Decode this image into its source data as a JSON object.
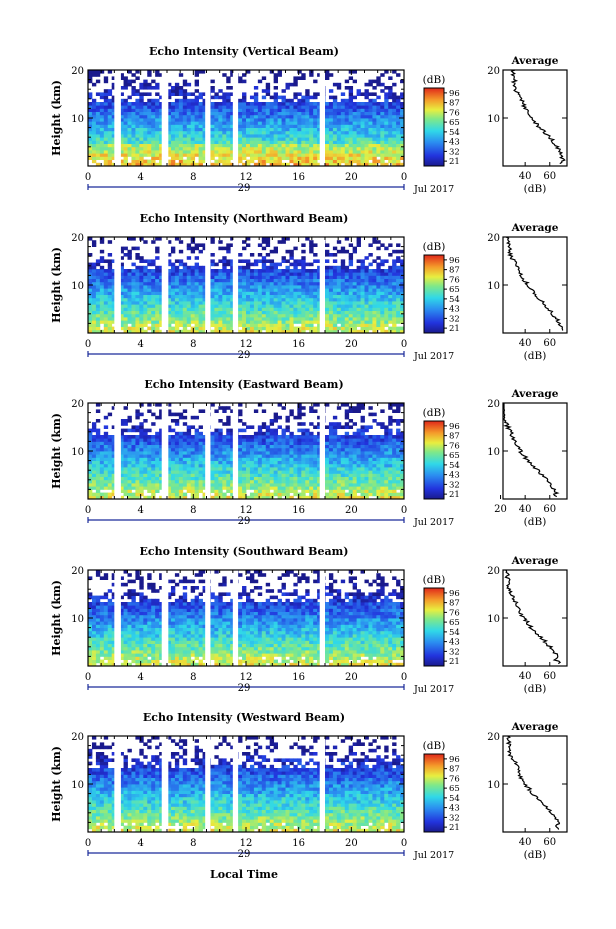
{
  "panels": [
    {
      "title": "Echo Intensity (Vertical Beam)",
      "average_title": "Average",
      "average_xticks": [
        "40",
        "60"
      ]
    },
    {
      "title": "Echo Intensity (Northward Beam)",
      "average_title": "Average",
      "average_xticks": [
        "40",
        "60"
      ]
    },
    {
      "title": "Echo Intensity (Eastward Beam)",
      "average_title": "Average",
      "average_xticks": [
        "20",
        "40",
        "60"
      ]
    },
    {
      "title": "Echo Intensity (Southward Beam)",
      "average_title": "Average",
      "average_xticks": [
        "40",
        "60"
      ]
    },
    {
      "title": "Echo Intensity (Westward Beam)",
      "average_title": "Average",
      "average_xticks": [
        "40",
        "60"
      ]
    }
  ],
  "common": {
    "ylabel": "Height (km)",
    "yticks": [
      "20",
      "10"
    ],
    "xticks": [
      "0",
      "4",
      "8",
      "12",
      "16",
      "20",
      "0"
    ],
    "day": "29",
    "month_year": "Jul 2017",
    "colorbar_unit": "(dB)",
    "colorbar_ticks": [
      "96",
      "87",
      "76",
      "65",
      "54",
      "43",
      "32",
      "21"
    ],
    "average_unit": "(dB)",
    "xlabel": "Local Time",
    "colors": {
      "jet_low": "#2222aa",
      "jet_high": "#ee2211",
      "avg_line": "#000000"
    }
  },
  "chart_data": [
    {
      "type": "heatmap",
      "title": "Echo Intensity (Vertical Beam)",
      "ylabel": "Height (km)",
      "xlabel": "Local Time",
      "x_range": [
        0,
        24
      ],
      "y_range": [
        0,
        20
      ],
      "colorbar": {
        "label": "(dB)",
        "range": [
          21,
          96
        ]
      },
      "data_gaps_hours": [
        [
          2.0,
          2.5
        ],
        [
          5.6,
          6.1
        ],
        [
          8.9,
          9.3
        ],
        [
          11.0,
          11.4
        ],
        [
          17.6,
          18.0
        ]
      ],
      "average_profile": {
        "xlabel": "(dB)",
        "ylim": [
          0,
          20
        ],
        "height_km": [
          2,
          4,
          6,
          8,
          10,
          12,
          14,
          16,
          18,
          20
        ],
        "echo_db": [
          70,
          66,
          60,
          52,
          45,
          40,
          37,
          32,
          31,
          30
        ]
      }
    },
    {
      "type": "heatmap",
      "title": "Echo Intensity (Northward Beam)",
      "ylabel": "Height (km)",
      "xlabel": "Local Time",
      "x_range": [
        0,
        24
      ],
      "y_range": [
        0,
        20
      ],
      "colorbar": {
        "label": "(dB)",
        "range": [
          21,
          96
        ]
      },
      "data_gaps_hours": [
        [
          2.0,
          2.5
        ],
        [
          5.6,
          6.1
        ],
        [
          8.9,
          9.3
        ],
        [
          11.0,
          11.4
        ],
        [
          17.6,
          18.0
        ]
      ],
      "average_profile": {
        "xlabel": "(dB)",
        "ylim": [
          0,
          20
        ],
        "height_km": [
          2,
          4,
          6,
          8,
          10,
          12,
          14,
          16,
          18,
          20
        ],
        "echo_db": [
          68,
          62,
          56,
          48,
          42,
          37,
          34,
          28,
          27,
          26
        ]
      }
    },
    {
      "type": "heatmap",
      "title": "Echo Intensity (Eastward Beam)",
      "ylabel": "Height (km)",
      "xlabel": "Local Time",
      "x_range": [
        0,
        24
      ],
      "y_range": [
        0,
        20
      ],
      "colorbar": {
        "label": "(dB)",
        "range": [
          21,
          96
        ]
      },
      "data_gaps_hours": [
        [
          2.0,
          2.5
        ],
        [
          5.6,
          6.1
        ],
        [
          8.9,
          9.3
        ],
        [
          11.0,
          11.4
        ],
        [
          17.6,
          18.0
        ]
      ],
      "average_profile": {
        "xlabel": "(dB)",
        "ylim": [
          0,
          20
        ],
        "height_km": [
          2,
          4,
          6,
          8,
          10,
          12,
          14,
          16,
          18,
          20
        ],
        "echo_db": [
          64,
          58,
          50,
          42,
          36,
          31,
          28,
          24,
          22,
          21
        ]
      }
    },
    {
      "type": "heatmap",
      "title": "Echo Intensity (Southward Beam)",
      "ylabel": "Height (km)",
      "xlabel": "Local Time",
      "x_range": [
        0,
        24
      ],
      "y_range": [
        0,
        20
      ],
      "colorbar": {
        "label": "(dB)",
        "range": [
          21,
          96
        ]
      },
      "data_gaps_hours": [
        [
          2.0,
          2.5
        ],
        [
          5.6,
          6.1
        ],
        [
          8.9,
          9.3
        ],
        [
          11.0,
          11.4
        ],
        [
          17.6,
          18.0
        ]
      ],
      "average_profile": {
        "xlabel": "(dB)",
        "ylim": [
          0,
          20
        ],
        "height_km": [
          2,
          4,
          6,
          8,
          10,
          12,
          14,
          16,
          18,
          20
        ],
        "echo_db": [
          66,
          60,
          53,
          45,
          39,
          34,
          31,
          27,
          26,
          25
        ]
      }
    },
    {
      "type": "heatmap",
      "title": "Echo Intensity (Westward Beam)",
      "ylabel": "Height (km)",
      "xlabel": "Local Time",
      "x_range": [
        0,
        24
      ],
      "y_range": [
        0,
        20
      ],
      "colorbar": {
        "label": "(dB)",
        "range": [
          21,
          96
        ]
      },
      "data_gaps_hours": [
        [
          2.0,
          2.5
        ],
        [
          5.6,
          6.1
        ],
        [
          8.9,
          9.3
        ],
        [
          11.0,
          11.4
        ],
        [
          17.6,
          18.0
        ]
      ],
      "average_profile": {
        "xlabel": "(dB)",
        "ylim": [
          0,
          20
        ],
        "height_km": [
          2,
          4,
          6,
          8,
          10,
          12,
          14,
          16,
          18,
          20
        ],
        "echo_db": [
          67,
          61,
          54,
          46,
          40,
          35,
          33,
          28,
          27,
          26
        ]
      }
    }
  ]
}
